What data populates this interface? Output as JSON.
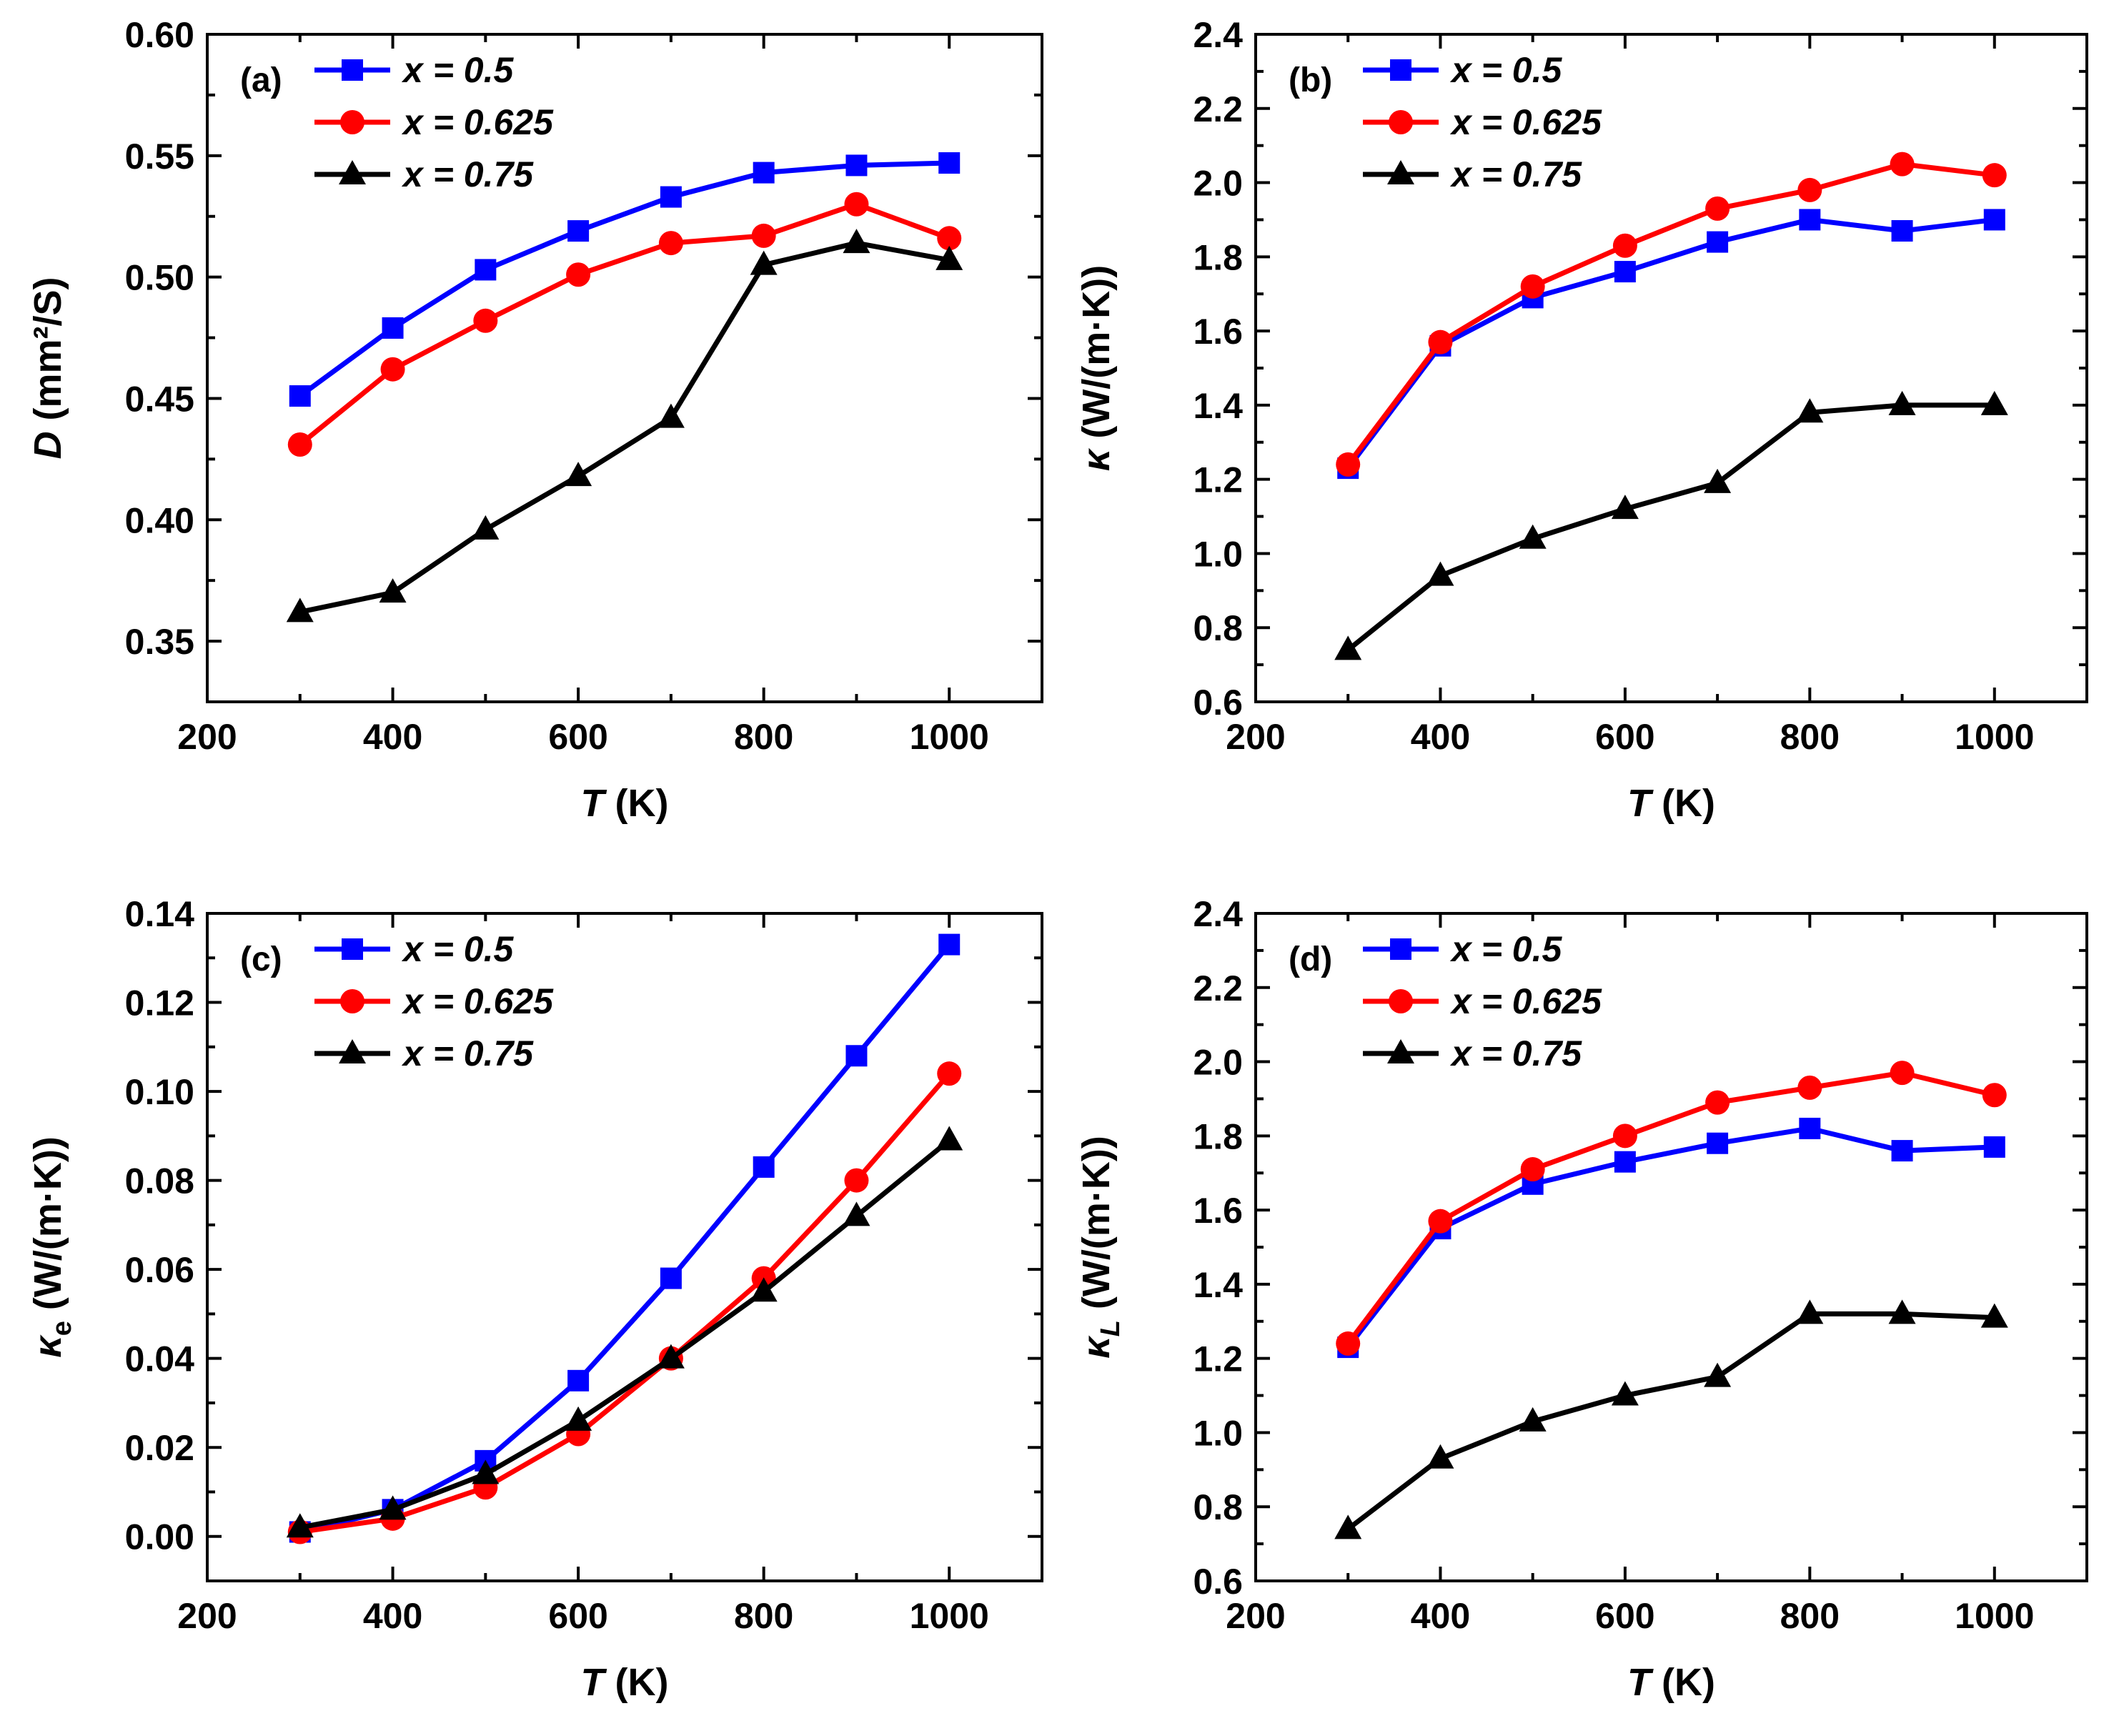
{
  "figure": {
    "colors": {
      "blue": "#0000ff",
      "red": "#ff0000",
      "black": "#000000"
    },
    "series_names": [
      "x = 0.5",
      "x = 0.625",
      "x = 0.75"
    ]
  },
  "chart_data": [
    {
      "type": "line",
      "panel_label": "(a)",
      "xlabel_italic": "T",
      "xlabel_rest": " (K)",
      "ylabel_italic": "D",
      "ylabel_rest": " (mm²/S)",
      "xlim": [
        200,
        1100
      ],
      "ylim": [
        0.325,
        0.6
      ],
      "xticks": [
        "200",
        "400",
        "600",
        "800",
        "1000"
      ],
      "yticks": [
        "0.35",
        "0.40",
        "0.45",
        "0.50",
        "0.55",
        "0.60"
      ],
      "x": [
        300,
        400,
        500,
        600,
        700,
        800,
        900,
        1000
      ],
      "series": [
        {
          "name": "x = 0.5",
          "marker": "square",
          "color": "#0000ff",
          "values": [
            0.451,
            0.479,
            0.503,
            0.519,
            0.533,
            0.543,
            0.546,
            0.547
          ]
        },
        {
          "name": "x = 0.625",
          "marker": "circle",
          "color": "#ff0000",
          "values": [
            0.431,
            0.462,
            0.482,
            0.501,
            0.514,
            0.517,
            0.53,
            0.516
          ]
        },
        {
          "name": "x = 0.75",
          "marker": "triangle",
          "color": "#000000",
          "values": [
            0.362,
            0.37,
            0.396,
            0.418,
            0.442,
            0.505,
            0.514,
            0.507
          ]
        }
      ]
    },
    {
      "type": "line",
      "panel_label": "(b)",
      "xlabel_italic": "T",
      "xlabel_rest": " (K)",
      "ylabel_italic": "κ",
      "ylabel_rest": " (W/(m·K))",
      "xlim": [
        200,
        1100
      ],
      "ylim": [
        0.6,
        2.4
      ],
      "xticks": [
        "200",
        "400",
        "600",
        "800",
        "1000"
      ],
      "yticks": [
        "0.6",
        "0.8",
        "1.0",
        "1.2",
        "1.4",
        "1.6",
        "1.8",
        "2.0",
        "2.2",
        "2.4"
      ],
      "x": [
        300,
        400,
        500,
        600,
        700,
        800,
        900,
        1000
      ],
      "series": [
        {
          "name": "x = 0.5",
          "marker": "square",
          "color": "#0000ff",
          "values": [
            1.23,
            1.56,
            1.69,
            1.76,
            1.84,
            1.9,
            1.87,
            1.9
          ]
        },
        {
          "name": "x = 0.625",
          "marker": "circle",
          "color": "#ff0000",
          "values": [
            1.24,
            1.57,
            1.72,
            1.83,
            1.93,
            1.98,
            2.05,
            2.02
          ]
        },
        {
          "name": "x = 0.75",
          "marker": "triangle",
          "color": "#000000",
          "values": [
            0.74,
            0.94,
            1.04,
            1.12,
            1.19,
            1.38,
            1.4,
            1.4
          ]
        }
      ]
    },
    {
      "type": "line",
      "panel_label": "(c)",
      "xlabel_italic": "T",
      "xlabel_rest": " (K)",
      "ylabel_italic": "κ",
      "ylabel_sub": "e",
      "ylabel_rest": " (W/(m·K))",
      "xlim": [
        200,
        1100
      ],
      "ylim": [
        -0.01,
        0.14
      ],
      "xticks": [
        "200",
        "400",
        "600",
        "800",
        "1000"
      ],
      "yticks": [
        "0.00",
        "0.02",
        "0.04",
        "0.06",
        "0.08",
        "0.10",
        "0.12",
        "0.14"
      ],
      "x": [
        300,
        400,
        500,
        600,
        700,
        800,
        900,
        1000
      ],
      "series": [
        {
          "name": "x = 0.5",
          "marker": "square",
          "color": "#0000ff",
          "values": [
            0.001,
            0.006,
            0.017,
            0.035,
            0.058,
            0.083,
            0.108,
            0.133
          ]
        },
        {
          "name": "x = 0.625",
          "marker": "circle",
          "color": "#ff0000",
          "values": [
            0.001,
            0.004,
            0.011,
            0.023,
            0.04,
            0.058,
            0.08,
            0.104
          ]
        },
        {
          "name": "x = 0.75",
          "marker": "triangle",
          "color": "#000000",
          "values": [
            0.002,
            0.006,
            0.014,
            0.026,
            0.04,
            0.055,
            0.072,
            0.089
          ]
        }
      ]
    },
    {
      "type": "line",
      "panel_label": "(d)",
      "xlabel_italic": "T",
      "xlabel_rest": " (K)",
      "ylabel_italic": "κ",
      "ylabel_sub": "L",
      "ylabel_rest": " (W/(m·K))",
      "xlim": [
        200,
        1100
      ],
      "ylim": [
        0.6,
        2.4
      ],
      "xticks": [
        "200",
        "400",
        "600",
        "800",
        "1000"
      ],
      "yticks": [
        "0.6",
        "0.8",
        "1.0",
        "1.2",
        "1.4",
        "1.6",
        "1.8",
        "2.0",
        "2.2",
        "2.4"
      ],
      "x": [
        300,
        400,
        500,
        600,
        700,
        800,
        900,
        1000
      ],
      "series": [
        {
          "name": "x = 0.5",
          "marker": "square",
          "color": "#0000ff",
          "values": [
            1.23,
            1.55,
            1.67,
            1.73,
            1.78,
            1.82,
            1.76,
            1.77
          ]
        },
        {
          "name": "x = 0.625",
          "marker": "circle",
          "color": "#ff0000",
          "values": [
            1.24,
            1.57,
            1.71,
            1.8,
            1.89,
            1.93,
            1.97,
            1.91
          ]
        },
        {
          "name": "x = 0.75",
          "marker": "triangle",
          "color": "#000000",
          "values": [
            0.74,
            0.93,
            1.03,
            1.1,
            1.15,
            1.32,
            1.32,
            1.31
          ]
        }
      ]
    }
  ]
}
